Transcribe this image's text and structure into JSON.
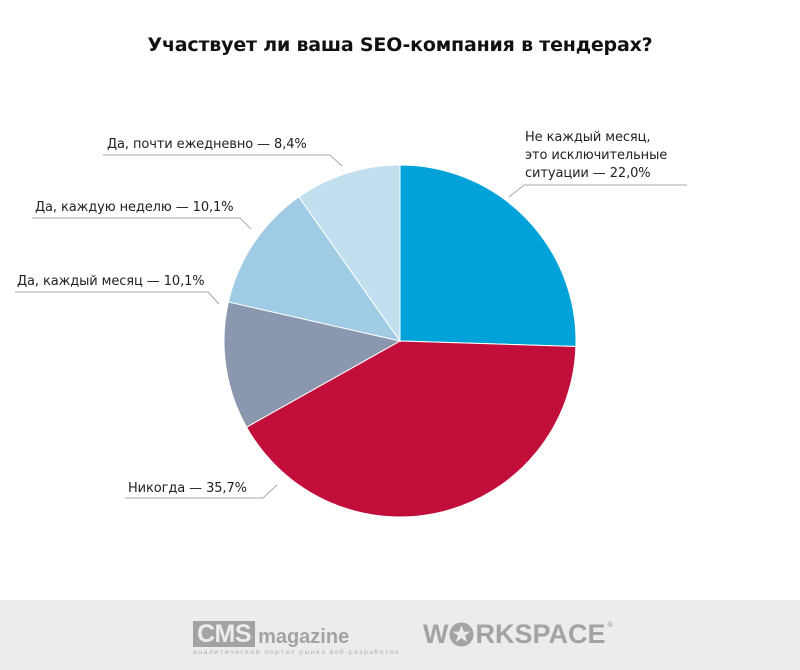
{
  "title": "Участвует ли ваша SEO-компания в тендерах?",
  "chart_data": {
    "type": "pie",
    "title": "Участвует ли ваша SEO-компания в тендерах?",
    "start_angle_deg": 0,
    "direction": "clockwise",
    "slices": [
      {
        "label": "Не каждый месяц, это исключительные ситуации",
        "value": 22.0,
        "display": "Не каждый месяц, это исключительные ситуации — 22,0%",
        "color": "#00a3d9"
      },
      {
        "label": "Никогда",
        "value": 35.7,
        "display": "Никогда — 35,7%",
        "color": "#c20e3a"
      },
      {
        "label": "Да, каждый месяц",
        "value": 10.1,
        "display": "Да, каждый месяц — 10,1%",
        "color": "#8b97ae"
      },
      {
        "label": "Да, каждую неделю",
        "value": 10.1,
        "display": "Да, каждую неделю — 10,1%",
        "color": "#a0cbe4"
      },
      {
        "label": "Да, почти ежедневно",
        "value": 8.4,
        "display": "Да, почти ежедневно — 8,4%",
        "color": "#c2dfef"
      }
    ],
    "legend": "none (leader-line labels)"
  },
  "labels": {
    "blue_line1": "Не каждый месяц,",
    "blue_line2": "это исключительные",
    "blue_line3": "ситуации — 22,0%",
    "red": "Никогда — 35,7%",
    "gray": "Да, каждый месяц — 10,1%",
    "midblue": "Да, каждую неделю — 10,1%",
    "lightblue": "Да, почти ежедневно — 8,4%"
  },
  "footer": {
    "cms_logo_box": "CMS",
    "cms_logo_word": "magazine",
    "cms_tagline": "аналитический портал рынка веб-разработок",
    "workspace_pre": "W",
    "workspace_post": "RKSPACE",
    "workspace_reg": "®"
  }
}
